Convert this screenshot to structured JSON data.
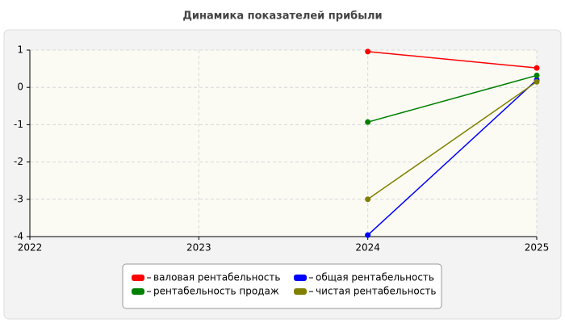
{
  "chart_data": {
    "type": "line",
    "title": "Динамика показателей прибыли",
    "x": [
      2022,
      2023,
      2024,
      2025
    ],
    "xlim": [
      2022,
      2025
    ],
    "xticks": [
      2022,
      2023,
      2024,
      2025
    ],
    "ylim": [
      -4,
      1
    ],
    "yticks": [
      -4,
      -3,
      -2,
      -1,
      0,
      1
    ],
    "grid": true,
    "series": [
      {
        "name": "валовая рентабельность",
        "color": "#ff0000",
        "values": [
          null,
          null,
          0.96,
          0.52
        ]
      },
      {
        "name": "общая рентабельность",
        "color": "#0000ff",
        "values": [
          null,
          null,
          -3.96,
          0.2
        ]
      },
      {
        "name": "рентабельность продаж",
        "color": "#008000",
        "values": [
          null,
          null,
          -0.93,
          0.32
        ]
      },
      {
        "name": "чистая рентабельность",
        "color": "#808000",
        "values": [
          null,
          null,
          -3.0,
          0.15
        ]
      }
    ]
  }
}
